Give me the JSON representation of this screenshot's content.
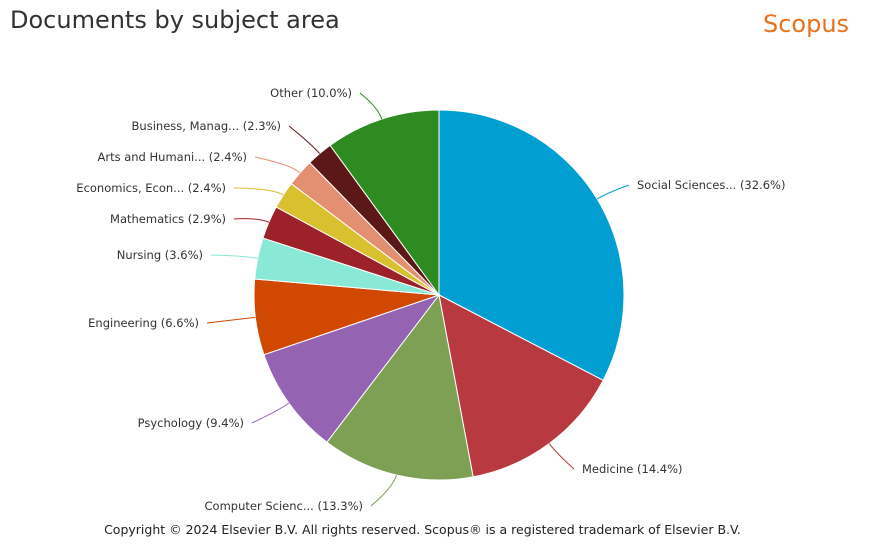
{
  "header": {
    "title": "Documents by subject area",
    "logo_text": "Scopus",
    "logo_color": "#e9711c"
  },
  "footer": {
    "copyright": "Copyright © 2024 Elsevier B.V. All rights reserved. Scopus® is a registered trademark of Elsevier B.V."
  },
  "chart_data": {
    "type": "pie",
    "title": "Documents by subject area",
    "start_angle_deg": 0,
    "direction": "clockwise",
    "slices": [
      {
        "label": "Social Sciences...",
        "value": 32.6,
        "display": "Social Sciences... (32.6%)",
        "color": "#009ed1"
      },
      {
        "label": "Medicine",
        "value": 14.4,
        "display": "Medicine (14.4%)",
        "color": "#b83a40"
      },
      {
        "label": "Computer Scienc...",
        "value": 13.3,
        "display": "Computer Scienc... (13.3%)",
        "color": "#7ea054"
      },
      {
        "label": "Psychology",
        "value": 9.4,
        "display": "Psychology (9.4%)",
        "color": "#9463b2"
      },
      {
        "label": "Engineering",
        "value": 6.6,
        "display": "Engineering (6.6%)",
        "color": "#d14900"
      },
      {
        "label": "Nursing",
        "value": 3.6,
        "display": "Nursing (3.6%)",
        "color": "#89e8d6"
      },
      {
        "label": "Mathematics",
        "value": 2.9,
        "display": "Mathematics (2.9%)",
        "color": "#9c2128"
      },
      {
        "label": "Economics, Econ...",
        "value": 2.4,
        "display": "Economics, Econ... (2.4%)",
        "color": "#d8c02f"
      },
      {
        "label": "Arts and Humani...",
        "value": 2.4,
        "display": "Arts and Humani... (2.4%)",
        "color": "#e38f72"
      },
      {
        "label": "Business, Manag...",
        "value": 2.3,
        "display": "Business, Manag... (2.3%)",
        "color": "#5c1717"
      },
      {
        "label": "Other",
        "value": 10.0,
        "display": "Other (10.0%)",
        "color": "#2d8b21"
      }
    ]
  }
}
